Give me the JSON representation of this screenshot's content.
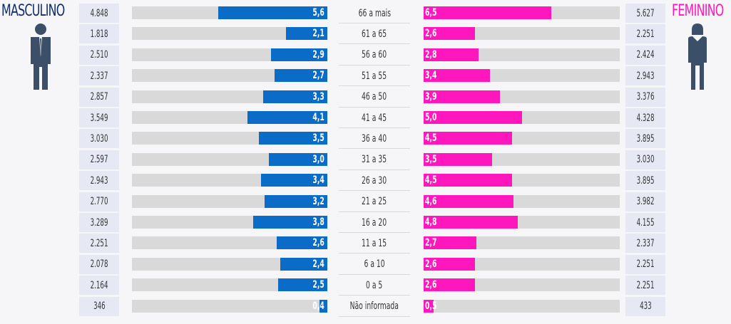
{
  "header": {
    "male_title": "MASCULINO",
    "female_title": "FEMININO"
  },
  "colors": {
    "male_bar": "#0a6cc6",
    "female_bar": "#ff17be",
    "male_title": "#0f2d6e",
    "female_title": "#ff17be",
    "track": "#d9d9d9",
    "count_cell": "#e6e8f4",
    "icon": "#3b5068"
  },
  "icons": {
    "male": "man-silhouette-icon",
    "female": "woman-silhouette-icon"
  },
  "chart_data": {
    "type": "bar",
    "subtype": "population-pyramid",
    "title": "",
    "xlabel": "",
    "ylabel": "",
    "xlim": [
      0,
      10
    ],
    "categories": [
      "66 a mais",
      "61 a 65",
      "56 a 60",
      "51 a 55",
      "46 a 50",
      "41 a 45",
      "36 a 40",
      "31 a 35",
      "26 a 30",
      "21 a 25",
      "16 a 20",
      "11 a 15",
      "6 a 10",
      "0 a 5",
      "Não informada"
    ],
    "series": [
      {
        "name": "MASCULINO",
        "values": [
          5.6,
          2.1,
          2.9,
          2.7,
          3.3,
          4.1,
          3.5,
          3.0,
          3.4,
          3.2,
          3.8,
          2.6,
          2.4,
          2.5,
          0.4
        ],
        "labels": [
          "5,6",
          "2,1",
          "2,9",
          "2,7",
          "3,3",
          "4,1",
          "3,5",
          "3,0",
          "3,4",
          "3,2",
          "3,8",
          "2,6",
          "2,4",
          "2,5",
          "0,4"
        ],
        "counts": [
          "4.848",
          "1.818",
          "2.510",
          "2.337",
          "2.857",
          "3.549",
          "3.030",
          "2.597",
          "2.943",
          "2.770",
          "3.289",
          "2.251",
          "2.078",
          "2.164",
          "346"
        ]
      },
      {
        "name": "FEMININO",
        "values": [
          6.5,
          2.6,
          2.8,
          3.4,
          3.9,
          5.0,
          4.5,
          3.5,
          4.5,
          4.6,
          4.8,
          2.7,
          2.6,
          2.6,
          0.5
        ],
        "labels": [
          "6,5",
          "2,6",
          "2,8",
          "3,4",
          "3,9",
          "5,0",
          "4,5",
          "3,5",
          "4,5",
          "4,6",
          "4,8",
          "2,7",
          "2,6",
          "2,6",
          "0,5"
        ],
        "counts": [
          "5.627",
          "2.251",
          "2.424",
          "2.943",
          "3.376",
          "4.328",
          "3.895",
          "3.030",
          "3.895",
          "3.982",
          "4.155",
          "2.337",
          "2.251",
          "2.251",
          "433"
        ]
      }
    ],
    "grid": false,
    "legend": "top-left (MASCULINO), top-right (FEMININO)"
  }
}
